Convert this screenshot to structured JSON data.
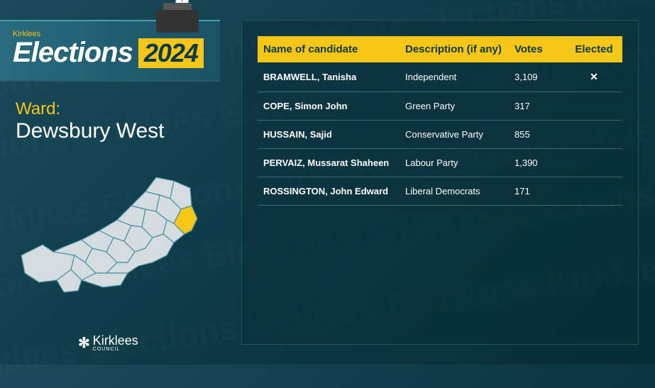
{
  "branding": {
    "council_small": "Kirklees",
    "title_word": "Elections",
    "year": "2024",
    "footer_name": "Kirklees",
    "footer_sub": "COUNCIL"
  },
  "ward": {
    "label": "Ward:",
    "name": "Dewsbury West"
  },
  "table": {
    "headers": {
      "name": "Name of candidate",
      "description": "Description (if any)",
      "votes": "Votes",
      "elected": "Elected"
    },
    "rows": [
      {
        "name": "BRAMWELL, Tanisha",
        "description": "Independent",
        "votes": "3,109",
        "elected": "✕"
      },
      {
        "name": "COPE, Simon John",
        "description": "Green Party",
        "votes": "317",
        "elected": ""
      },
      {
        "name": "HUSSAIN, Sajid",
        "description": "Conservative Party",
        "votes": "855",
        "elected": ""
      },
      {
        "name": "PERVAIZ, Mussarat Shaheen",
        "description": "Labour Party",
        "votes": "1,390",
        "elected": ""
      },
      {
        "name": "ROSSINGTON, John Edward",
        "description": "Liberal Democrats",
        "votes": "171",
        "elected": ""
      }
    ]
  },
  "colors": {
    "accent_yellow": "#f5c518",
    "bg1": "#1a4a5a",
    "bg2": "#0a2c36",
    "map_fill": "#d4dce0",
    "map_stroke": "#4a8fa3",
    "highlight_fill": "#f5c518"
  }
}
